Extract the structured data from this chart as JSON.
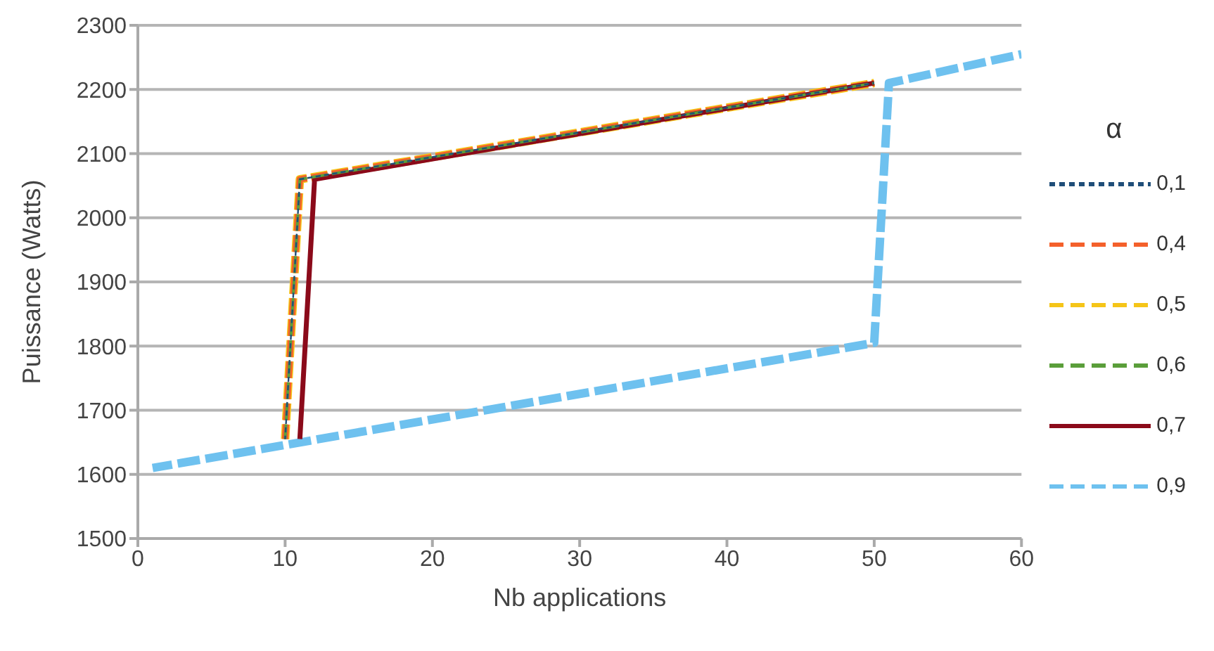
{
  "chart_data": {
    "type": "line",
    "xlabel": "Nb applications",
    "ylabel": "Puissance (Watts)",
    "legend_title": "α",
    "xlim": [
      0,
      60
    ],
    "xticks": [
      0,
      10,
      20,
      30,
      40,
      50,
      60
    ],
    "ylim": [
      1500,
      2300
    ],
    "yticks": [
      1500,
      1600,
      1700,
      1800,
      1900,
      2000,
      2100,
      2200,
      2300
    ],
    "grid": "y",
    "legend": "right",
    "marker": "none",
    "series": [
      {
        "name": "0,1",
        "color": "#1f4e79",
        "line_style": "dotted",
        "x": [
          10,
          11,
          50
        ],
        "values": [
          1655,
          2060,
          2210
        ]
      },
      {
        "name": "0,4",
        "color": "#f4602b",
        "line_style": "dashed",
        "x": [
          10,
          11,
          50
        ],
        "values": [
          1655,
          2060,
          2210
        ]
      },
      {
        "name": "0,5",
        "color": "#f5c518",
        "line_style": "dashed",
        "x": [
          10,
          11,
          50
        ],
        "values": [
          1655,
          2060,
          2210
        ]
      },
      {
        "name": "0,6",
        "color": "#5a9e3a",
        "line_style": "dashed",
        "x": [
          10,
          11,
          50
        ],
        "values": [
          1655,
          2060,
          2210
        ]
      },
      {
        "name": "0,7",
        "color": "#8b0a1a",
        "line_style": "solid",
        "x": [
          11,
          12,
          50
        ],
        "values": [
          1655,
          2060,
          2210
        ]
      },
      {
        "name": "0,9",
        "color": "#6ec1ef",
        "line_style": "dashed",
        "x": [
          1,
          50,
          51,
          60
        ],
        "values": [
          1610,
          1805,
          2210,
          2255
        ]
      }
    ]
  }
}
